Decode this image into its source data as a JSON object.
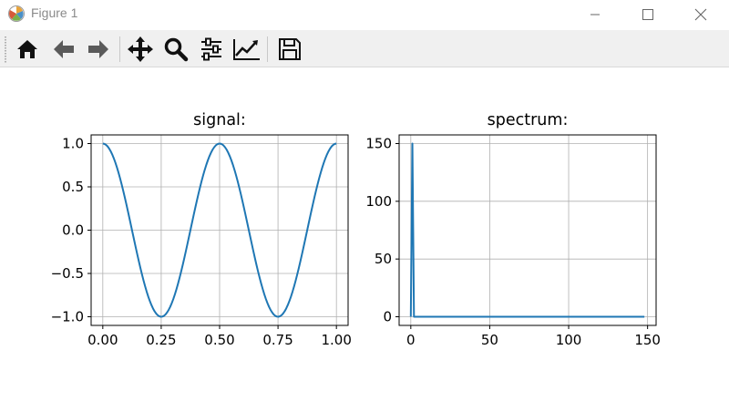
{
  "window": {
    "title": "Figure 1"
  },
  "toolbar": {
    "buttons": [
      {
        "name": "home-button",
        "icon": "home-icon"
      },
      {
        "name": "back-button",
        "icon": "back-arrow-icon"
      },
      {
        "name": "forward-button",
        "icon": "forward-arrow-icon"
      },
      {
        "name": "pan-button",
        "icon": "move-icon"
      },
      {
        "name": "zoom-button",
        "icon": "magnifier-icon"
      },
      {
        "name": "configure-subplots-button",
        "icon": "sliders-icon"
      },
      {
        "name": "edit-axes-button",
        "icon": "chart-line-icon"
      },
      {
        "name": "save-button",
        "icon": "floppy-disk-icon"
      }
    ]
  },
  "colors": {
    "line": "#1f77b4",
    "grid": "#b0b0b0",
    "toolbar_bg": "#f0f0f0"
  },
  "chart_data": [
    {
      "type": "line",
      "title": "signal:",
      "xlabel": "",
      "ylabel": "",
      "xlim": [
        -0.05,
        1.05
      ],
      "ylim": [
        -1.1,
        1.1
      ],
      "xticks": [
        0.0,
        0.25,
        0.5,
        0.75,
        1.0
      ],
      "xtick_labels": [
        "0.00",
        "0.25",
        "0.50",
        "0.75",
        "1.00"
      ],
      "yticks": [
        1.0,
        0.5,
        0.0,
        -0.5,
        -1.0
      ],
      "ytick_labels": [
        "1.0",
        "0.5",
        "0.0",
        "−0.5",
        "−1.0"
      ],
      "grid": true,
      "series": [
        {
          "function": "cos(2*pi*2*x)",
          "x_range": [
            0,
            1
          ],
          "samples": 150
        }
      ]
    },
    {
      "type": "line",
      "title": "spectrum:",
      "xlabel": "",
      "ylabel": "",
      "xlim": [
        -7.4,
        155.4
      ],
      "ylim": [
        -7.5,
        157.5
      ],
      "xticks": [
        0,
        50,
        100,
        150
      ],
      "xtick_labels": [
        "0",
        "50",
        "100",
        "150"
      ],
      "yticks": [
        0,
        50,
        100,
        150
      ],
      "ytick_labels": [
        "0",
        "50",
        "100",
        "150"
      ],
      "grid": true,
      "series": [
        {
          "x": [
            0,
            1,
            2,
            3,
            148
          ],
          "y": [
            0,
            150,
            0,
            0,
            0
          ]
        }
      ]
    }
  ]
}
